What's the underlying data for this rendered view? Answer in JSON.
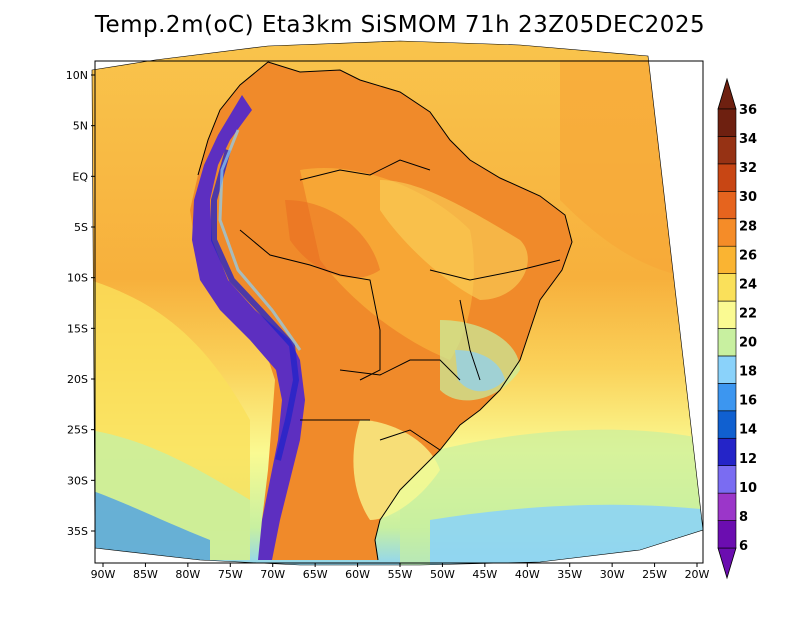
{
  "title": "Temp.2m(oC) Eta3km SiSMOM 71h 23Z05DEC2025",
  "map": {
    "lon_labels": [
      "90W",
      "85W",
      "80W",
      "75W",
      "70W",
      "65W",
      "60W",
      "55W",
      "50W",
      "45W",
      "40W",
      "35W",
      "30W",
      "25W",
      "20W"
    ],
    "lon_values": [
      -90,
      -85,
      -80,
      -75,
      -70,
      -65,
      -60,
      -55,
      -50,
      -45,
      -40,
      -35,
      -30,
      -25,
      -20
    ],
    "lat_labels": [
      "10N",
      "5N",
      "EQ",
      "5S",
      "10S",
      "15S",
      "20S",
      "25S",
      "30S",
      "35S"
    ],
    "lat_values": [
      10,
      5,
      0,
      -5,
      -10,
      -15,
      -20,
      -25,
      -30,
      -35
    ],
    "extent": {
      "lon_min": -91,
      "lon_max": -20,
      "lat_min": -38,
      "lat_max": 12
    }
  },
  "colorbar": {
    "levels": [
      6,
      8,
      10,
      12,
      14,
      16,
      18,
      20,
      22,
      24,
      26,
      28,
      30,
      32,
      34,
      36
    ],
    "labels": [
      "36",
      "34",
      "32",
      "30",
      "28",
      "26",
      "24",
      "22",
      "20",
      "18",
      "16",
      "14",
      "12",
      "10",
      "8",
      "6"
    ],
    "colors": [
      "#6b0db0",
      "#9b36c9",
      "#7a6cf2",
      "#2424c8",
      "#1060d0",
      "#3c96f0",
      "#8ad2fa",
      "#c8f0a0",
      "#fafa92",
      "#fae05a",
      "#fab432",
      "#f58c28",
      "#e6641e",
      "#c84614",
      "#963214",
      "#6e2010"
    ]
  },
  "palette": {
    "ocean_warm": "#f9be46",
    "ocean_mid": "#fada5a",
    "ocean_cool": "#fafa92",
    "land_hot": "#f08a2a",
    "andes_cold": "#4b2ab0",
    "border": "#000000"
  }
}
